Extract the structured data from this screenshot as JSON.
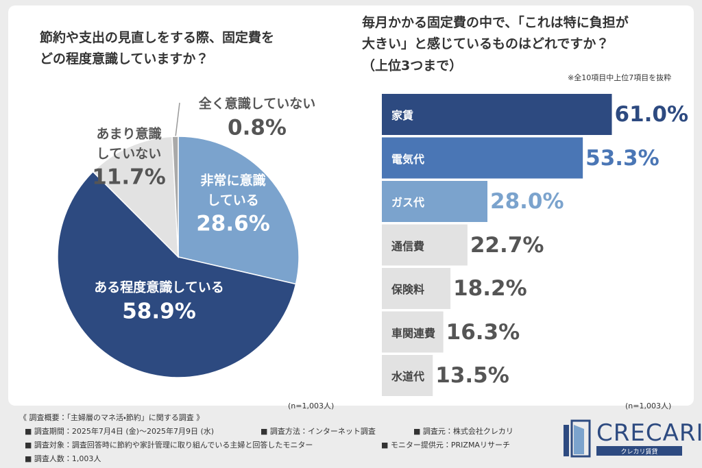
{
  "chart_data": [
    {
      "type": "pie",
      "title": "節約や支出の見直しをする際、固定費を\nどの程度意識していますか？",
      "categories": [
        "非常に意識\nしている",
        "ある程度意識している",
        "あまり意識\nしていない",
        "全く意識していない"
      ],
      "values": [
        28.6,
        58.9,
        11.7,
        0.8
      ],
      "value_labels": [
        "28.6%",
        "58.9%",
        "11.7%",
        "0.8%"
      ],
      "colors": [
        "#7ba3cd",
        "#2d4a80",
        "#e2e2e2",
        "#a9a9a9"
      ],
      "label_colors": [
        "#ffffff",
        "#ffffff",
        "#555555",
        "#555555"
      ],
      "note": "(n=1,003人)"
    },
    {
      "type": "bar",
      "orientation": "horizontal",
      "title": "毎月かかる固定費の中で、「これは特に負担が\n大きい」と感じているものはどれですか？\n（上位3つまで）",
      "subtitle": "※全10項目中上位7項目を抜粋",
      "categories": [
        "家賃",
        "電気代",
        "ガス代",
        "通信費",
        "保険料",
        "車関連費",
        "水道代"
      ],
      "values": [
        61.0,
        53.3,
        28.0,
        22.7,
        18.2,
        16.3,
        13.5
      ],
      "value_labels": [
        "61.0%",
        "53.3%",
        "28.0%",
        "22.7%",
        "18.2%",
        "16.3%",
        "13.5%"
      ],
      "colors": [
        "#2d4a80",
        "#4a76b5",
        "#7ba3cd",
        "#e2e2e2",
        "#e2e2e2",
        "#e2e2e2",
        "#e2e2e2"
      ],
      "category_colors": [
        "#ffffff",
        "#ffffff",
        "#ffffff",
        "#444444",
        "#444444",
        "#444444",
        "#444444"
      ],
      "value_label_colors": [
        "#2d4a80",
        "#4a76b5",
        "#7ba3cd",
        "#555555",
        "#555555",
        "#555555",
        "#555555"
      ],
      "note": "(n=1,003人)"
    }
  ],
  "footer": {
    "heading": "《 調査概要：「主婦層のマネ活・節約」に関する調査 》",
    "period": "■ 調査期間：2025年7月4日 (金)〜2025年7月9日 (水)",
    "method": "■ 調査方法：インターネット調査",
    "source": "■ 調査元：株式会社クレカリ",
    "target": "■ 調査対象：調査回答時に節約や家計管理に取り組んでいる主婦と回答したモニター",
    "provider": "■ モニター提供元：PRIZMAリサーチ",
    "count": "■ 調査人数：1,003人"
  },
  "logo": {
    "name": "CRECARI",
    "tagline": "クレカリ賃貸"
  }
}
